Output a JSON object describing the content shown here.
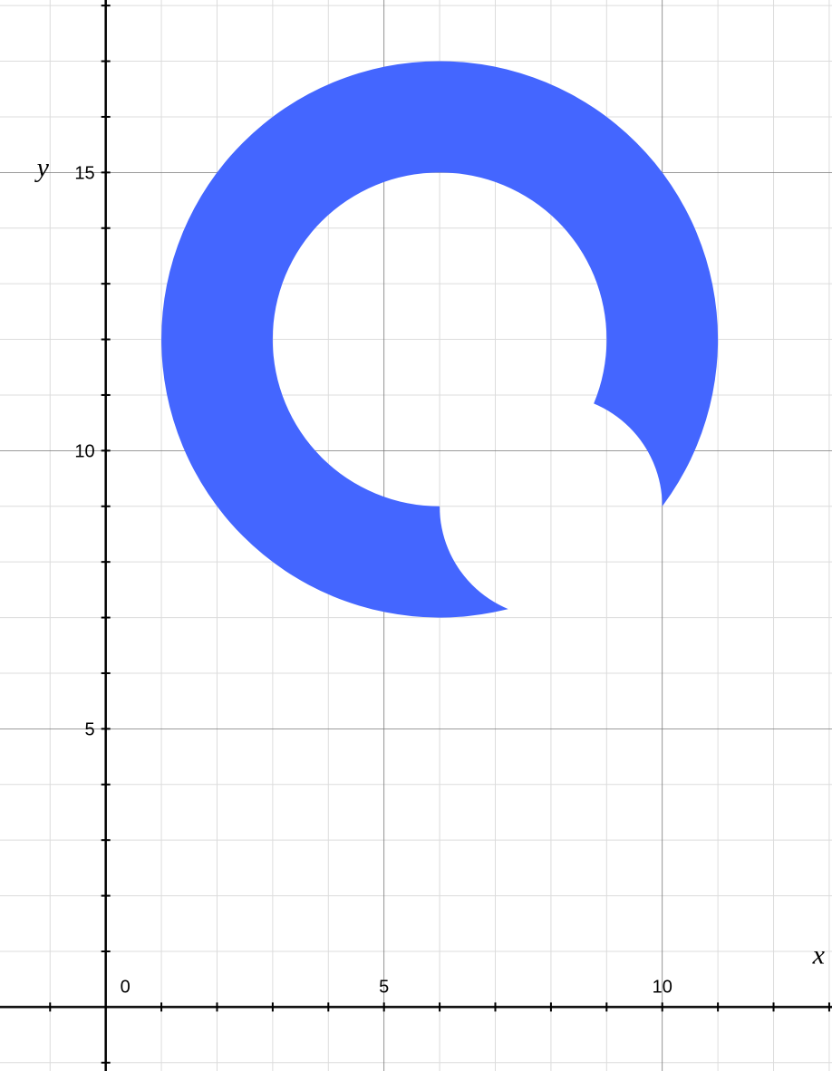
{
  "chart_data": {
    "type": "region",
    "xlim": [
      -1.9,
      13.05
    ],
    "ylim": [
      -1.15,
      18.1
    ],
    "grid": true,
    "minor_step": 1,
    "major_step": 5,
    "xlabel": "x",
    "ylabel": "y",
    "x_tick_labels": [
      {
        "value": 0,
        "label": "0"
      },
      {
        "value": 5,
        "label": "5"
      },
      {
        "value": 10,
        "label": "10"
      }
    ],
    "y_tick_labels": [
      {
        "value": 5,
        "label": "5"
      },
      {
        "value": 10,
        "label": "10"
      },
      {
        "value": 15,
        "label": "15"
      }
    ],
    "region": {
      "color": "#4466ff",
      "outer_circle": {
        "cx": 6,
        "cy": 12,
        "r": 5
      },
      "inner_circle": {
        "cx": 6,
        "cy": 12,
        "r": 3
      },
      "cutout_circle": {
        "cx": 8,
        "cy": 9,
        "r": 2
      },
      "cutout_clip": {
        "x_max": 10,
        "y_min": 7
      }
    }
  }
}
